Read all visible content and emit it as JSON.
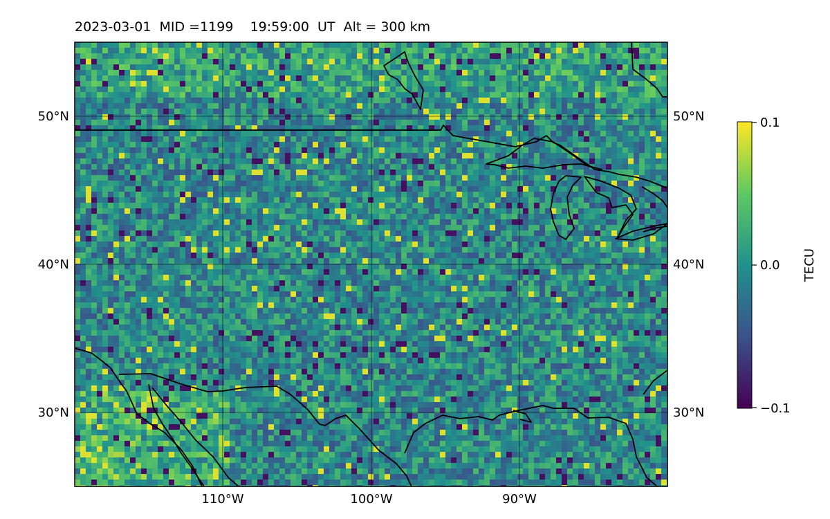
{
  "title": "2023-03-01  MID =1199    19:59:00  UT  Alt = 300 km",
  "colormap": {
    "name": "viridis",
    "stops": [
      "#440154",
      "#3b528b",
      "#21918c",
      "#5ec962",
      "#fde725"
    ]
  },
  "map": {
    "lon_range": [
      -120,
      -80
    ],
    "lat_range": [
      25,
      55
    ],
    "lon_gridlines": [
      -110,
      -100,
      -90
    ],
    "lat_gridlines": [
      30,
      40,
      50
    ],
    "lon_tick_labels": [
      "110°W",
      "100°W",
      "90°W"
    ],
    "lat_tick_labels": [
      "30°N",
      "40°N",
      "50°N"
    ]
  },
  "colorbar": {
    "label": "TECU",
    "min": -0.1,
    "max": 0.1,
    "tick_labels": [
      "0.1",
      "0.0",
      "−0.1"
    ]
  }
}
